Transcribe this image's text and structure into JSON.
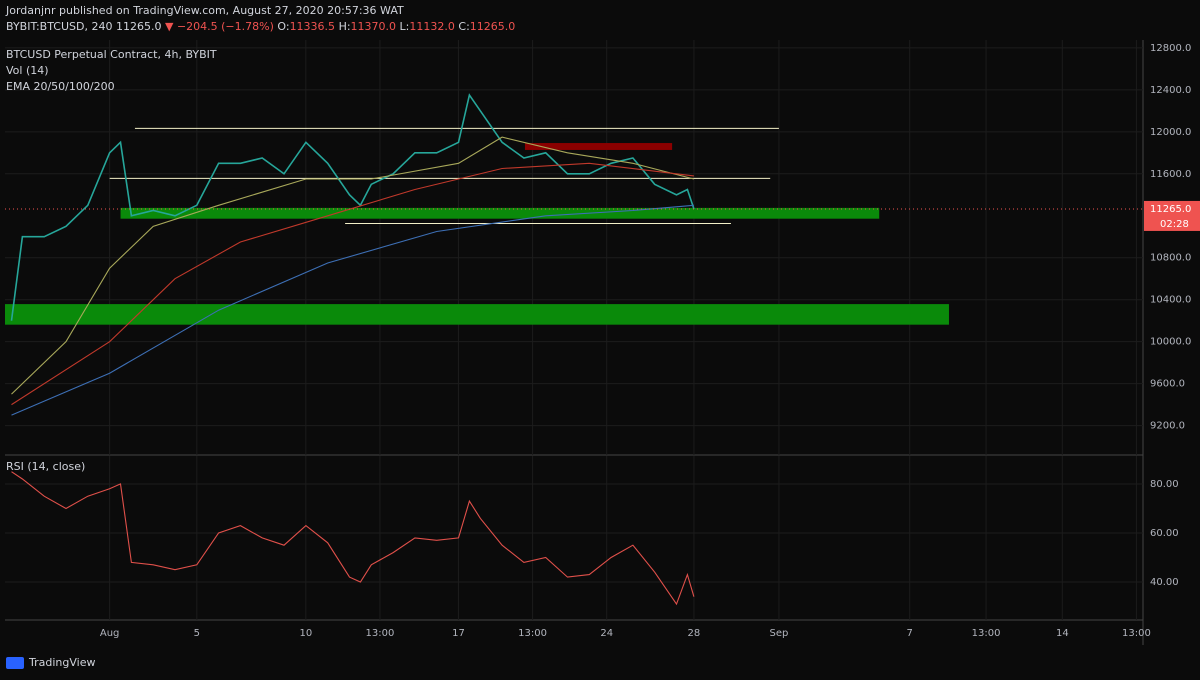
{
  "header": {
    "publisher": "Jordanjnr published on TradingView.com, August 27, 2020 20:57:36 WAT",
    "symbol": "BYBIT:BTCUSD, 240",
    "price": "11265.0",
    "arrow": "▼",
    "change": "−204.5 (−1.78%)",
    "o_label": "O:",
    "o": "11336.5",
    "h_label": "H:",
    "h": "11370.0",
    "l_label": "L:",
    "l": "11132.0",
    "c_label": "C:",
    "c": "11265.0"
  },
  "legend": {
    "title": "BTCUSD Perpetual Contract, 4h, BYBIT",
    "vol": "Vol (14)",
    "ema": "EMA 20/50/100/200"
  },
  "footer": {
    "brand": "TradingView"
  },
  "chart_data": [
    {
      "type": "line",
      "xlim": [
        -4.8,
        47.4
      ],
      "ylim": [
        8920,
        12875
      ],
      "xticks": [
        {
          "value": 0,
          "label": "Aug"
        },
        {
          "value": 4,
          "label": "5"
        },
        {
          "value": 9,
          "label": "10"
        },
        {
          "value": 12.4,
          "label": "13:00"
        },
        {
          "value": 16,
          "label": "17"
        },
        {
          "value": 19.4,
          "label": "13:00"
        },
        {
          "value": 22.8,
          "label": "24"
        },
        {
          "value": 26.8,
          "label": "28"
        },
        {
          "value": 30.7,
          "label": "Sep"
        },
        {
          "value": 36.7,
          "label": "7"
        },
        {
          "value": 40.2,
          "label": "13:00"
        },
        {
          "value": 43.7,
          "label": "14"
        },
        {
          "value": 47.1,
          "label": "13:00"
        }
      ],
      "yticks": [
        {
          "value": 12800,
          "label": "12800.0"
        },
        {
          "value": 12400,
          "label": "12400.0"
        },
        {
          "value": 12000,
          "label": "12000.0"
        },
        {
          "value": 11600,
          "label": "11600.0"
        },
        {
          "value": 10800,
          "label": "10800.0"
        },
        {
          "value": 10400,
          "label": "10400.0"
        },
        {
          "value": 10000,
          "label": "10000.0"
        },
        {
          "value": 9600,
          "label": "9600.0"
        },
        {
          "value": 9200,
          "label": "9200.0"
        }
      ],
      "grid": true,
      "series": [
        {
          "color": "#26a69a",
          "x": [
            -4.5,
            -4,
            -3,
            -2,
            -1,
            0,
            0.5,
            1,
            2,
            3,
            4,
            5,
            6,
            7,
            8,
            9,
            10,
            11,
            11.5,
            12,
            13,
            14,
            15,
            16,
            16.5,
            17,
            18,
            19,
            20,
            21,
            22,
            23,
            24,
            25,
            26,
            26.5,
            26.8
          ],
          "values": [
            10200,
            11000,
            11000,
            11100,
            11300,
            11800,
            11900,
            11200,
            11250,
            11200,
            11300,
            11700,
            11700,
            11750,
            11600,
            11900,
            11700,
            11400,
            11300,
            11500,
            11600,
            11800,
            11800,
            11900,
            12350,
            12200,
            11900,
            11750,
            11800,
            11600,
            11600,
            11700,
            11750,
            11500,
            11400,
            11450,
            11265
          ]
        },
        {
          "color": "#a8a85a",
          "x": [
            -4.5,
            -2,
            0,
            2,
            5,
            9,
            12,
            16,
            18,
            21,
            24,
            26.8
          ],
          "values": [
            9500,
            10000,
            10700,
            11100,
            11300,
            11550,
            11550,
            11700,
            11950,
            11800,
            11700,
            11550
          ]
        },
        {
          "color": "#c0392b",
          "x": [
            -4.5,
            0,
            3,
            6,
            10,
            14,
            18,
            22,
            26.8
          ],
          "values": [
            9400,
            10000,
            10600,
            10950,
            11200,
            11450,
            11650,
            11700,
            11580
          ]
        },
        {
          "color": "#3d6fb5",
          "x": [
            -4.5,
            0,
            5,
            10,
            15,
            20,
            24,
            26.8
          ],
          "values": [
            9300,
            9700,
            10300,
            10750,
            11050,
            11200,
            11250,
            11300
          ]
        }
      ],
      "bands": [
        {
          "range": [
            11172,
            11275
          ],
          "x": [
            0.5,
            35.3
          ],
          "color": "#0a8a0a"
        },
        {
          "range": [
            10162,
            10358
          ],
          "x": [
            -4.8,
            38.5
          ],
          "color": "#0a8a0a"
        },
        {
          "range": [
            11827,
            11893
          ],
          "x": [
            19.05,
            25.8
          ],
          "color": "#8b0000"
        }
      ],
      "levels": [
        {
          "value": 12033,
          "x": [
            1.16,
            30.7
          ],
          "color": "#f3f0c8"
        },
        {
          "value": 11556,
          "x": [
            0,
            30.3
          ],
          "color": "#f3f0c8"
        },
        {
          "value": 11126,
          "x": [
            10.8,
            28.5
          ],
          "color": "#f3f0c8"
        }
      ],
      "last": {
        "value": 11265,
        "label": "11265.0",
        "countdown": "02:28",
        "color": "#ef5350"
      }
    },
    {
      "type": "line",
      "title": "RSI (14, close)",
      "ylim": [
        24.5,
        91.4
      ],
      "yticks": [
        {
          "value": 80,
          "label": "80.00"
        },
        {
          "value": 60,
          "label": "60.00"
        },
        {
          "value": 40,
          "label": "40.00"
        }
      ],
      "series": [
        {
          "color": "#e0504a",
          "x": [
            -4.5,
            -4,
            -3,
            -2,
            -1,
            0,
            0.5,
            1,
            2,
            3,
            4,
            5,
            6,
            7,
            8,
            9,
            10,
            11,
            11.5,
            12,
            13,
            14,
            15,
            16,
            16.5,
            17,
            18,
            19,
            20,
            21,
            22,
            23,
            24,
            25,
            26,
            26.5,
            26.8
          ],
          "values": [
            85,
            82,
            75,
            70,
            75,
            78,
            80,
            48,
            47,
            45,
            47,
            60,
            63,
            58,
            55,
            63,
            56,
            42,
            40,
            47,
            52,
            58,
            57,
            58,
            73,
            66,
            55,
            48,
            50,
            42,
            43,
            50,
            55,
            44,
            31,
            43,
            34
          ]
        }
      ]
    }
  ]
}
